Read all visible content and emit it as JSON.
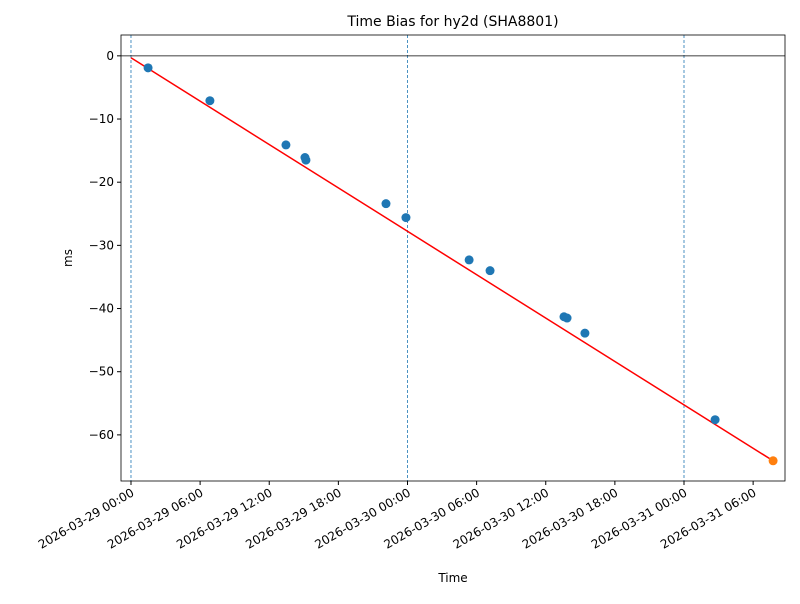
{
  "chart_data": {
    "type": "scatter",
    "title": "Time Bias for hy2d (SHA8801)",
    "xlabel": "Time",
    "ylabel": "ms",
    "xlim": [
      "2026-03-28 23:08",
      "2026-03-31 08:46"
    ],
    "ylim": [
      -67.3,
      3.3
    ],
    "xticks": [
      "2026-03-29 00:00",
      "2026-03-29 06:00",
      "2026-03-29 12:00",
      "2026-03-29 18:00",
      "2026-03-30 00:00",
      "2026-03-30 06:00",
      "2026-03-30 12:00",
      "2026-03-30 18:00",
      "2026-03-31 00:00",
      "2026-03-31 06:00"
    ],
    "yticks": [
      0,
      {
        "value": -10,
        "label": "−10"
      },
      {
        "value": -20,
        "label": "−20"
      },
      {
        "value": -30,
        "label": "−30"
      },
      {
        "value": -40,
        "label": "−40"
      },
      {
        "value": -50,
        "label": "−50"
      },
      {
        "value": -60,
        "label": "−60"
      }
    ],
    "hline": 0,
    "vlines": [
      "2026-03-29 00:00",
      "2026-03-30 00:00",
      "2026-03-31 00:00"
    ],
    "series": [
      {
        "mode": "line",
        "color": "#ff0000",
        "x": [
          "2026-03-29 00:00",
          "2026-03-31 07:44"
        ],
        "values": [
          -0.3,
          -64.1
        ]
      },
      {
        "mode": "marker",
        "color": "#1f77b4",
        "x": [
          "2026-03-29 01:29",
          "2026-03-29 06:51",
          "2026-03-29 13:27",
          "2026-03-29 15:06",
          "2026-03-29 15:11",
          "2026-03-29 22:08",
          "2026-03-29 23:52",
          "2026-03-30 05:21",
          "2026-03-30 07:10",
          "2026-03-30 13:35",
          "2026-03-30 13:51",
          "2026-03-30 15:24",
          "2026-03-31 02:42"
        ],
        "values": [
          -1.9,
          -7.1,
          -14.1,
          -16.1,
          -16.5,
          -23.4,
          -25.6,
          -32.3,
          -34.0,
          -41.3,
          -41.5,
          -43.9,
          -57.6
        ]
      },
      {
        "mode": "marker",
        "color": "#ff7f0e",
        "x": [
          "2026-03-31 07:44"
        ],
        "values": [
          -64.1
        ]
      }
    ]
  }
}
